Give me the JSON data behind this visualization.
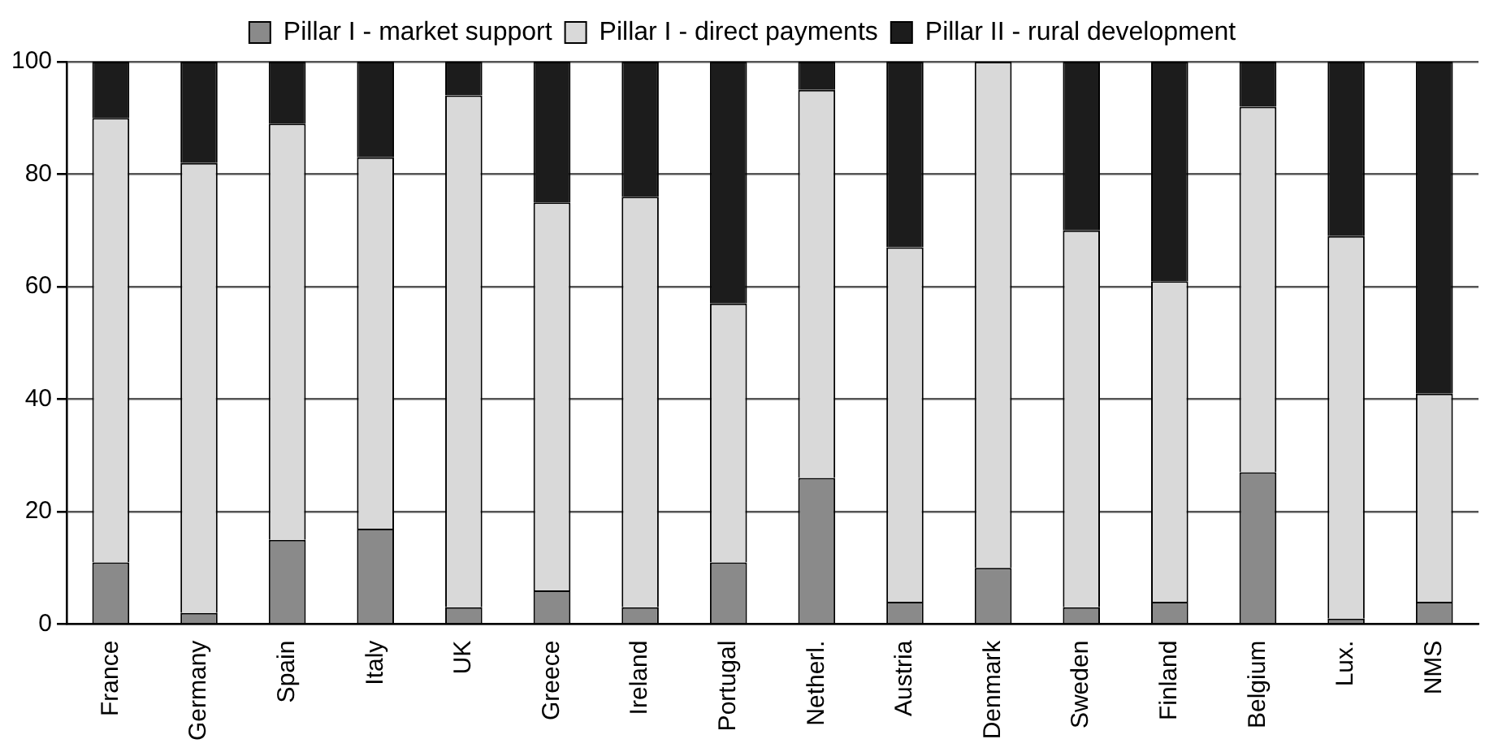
{
  "chart_data": {
    "type": "bar",
    "stacked": true,
    "categories": [
      "France",
      "Germany",
      "Spain",
      "Italy",
      "UK",
      "Greece",
      "Ireland",
      "Portugal",
      "Netherl.",
      "Austria",
      "Denmark",
      "Sweden",
      "Finland",
      "Belgium",
      "Lux.",
      "NMS"
    ],
    "series": [
      {
        "name": "Pillar I - market support",
        "color": "#8a8a8a",
        "values": [
          11,
          2,
          15,
          17,
          3,
          6,
          3,
          11,
          26,
          4,
          10,
          3,
          4,
          27,
          1,
          4
        ]
      },
      {
        "name": "Pillar I - direct payments",
        "color": "#d9d9d9",
        "values": [
          79,
          80,
          74,
          66,
          91,
          69,
          73,
          46,
          69,
          63,
          90,
          67,
          57,
          65,
          68,
          37
        ]
      },
      {
        "name": "Pillar II - rural development",
        "color": "#1c1c1c",
        "values": [
          10,
          18,
          11,
          17,
          6,
          25,
          24,
          43,
          5,
          33,
          0,
          30,
          39,
          8,
          31,
          59
        ]
      }
    ],
    "ylim": [
      0,
      100
    ],
    "yticks": [
      0,
      20,
      40,
      60,
      80,
      100
    ],
    "grid": "y",
    "legend": "top"
  }
}
